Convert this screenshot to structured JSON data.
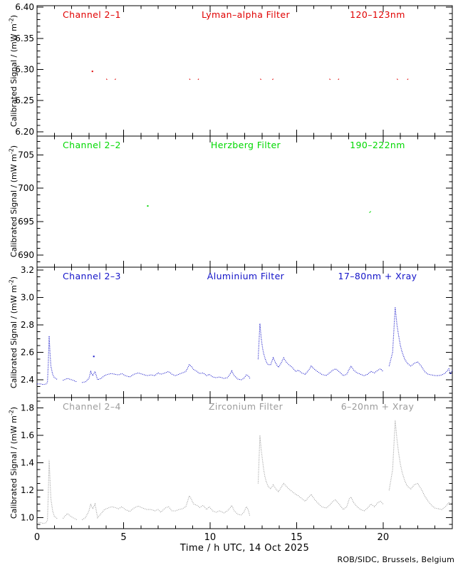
{
  "footer": {
    "credit": "ROB/SIDC, Brussels, Belgium"
  },
  "chart_data": {
    "type": "line",
    "title": "LYRA calibrated signal, four stacked channel panels",
    "x_axis": {
      "label": "Time / h UTC, 14 Oct 2025",
      "range": [
        0,
        24
      ],
      "major_ticks": [
        0,
        5,
        10,
        15,
        20
      ],
      "minor_step": 1
    },
    "y_axis_label": {
      "prefix": "Calibrated Signal / (mW m",
      "sup": "-2",
      "suffix": ")"
    },
    "panels": [
      {
        "channel": "Channel 2–1",
        "filter": "Lyman–alpha Filter",
        "range": "120–123nm",
        "color": "#e00000",
        "style": "solid",
        "ylim": [
          6.193,
          6.4025
        ],
        "yticks": [
          6.2,
          6.25,
          6.3,
          6.35,
          6.4
        ],
        "ytick_decimals": 2,
        "minor_step": 0.01,
        "t": [
          0,
          3.0,
          3.6,
          4.0,
          4.05,
          4.5,
          4.55,
          8.8,
          8.85,
          9.3,
          9.35,
          12.9,
          12.95,
          13.6,
          13.65,
          16.9,
          16.95,
          17.4,
          17.45,
          20.8,
          20.85,
          21.4,
          21.45,
          24
        ],
        "v": [
          6.285,
          6.285,
          6.285,
          6.285,
          6.2835,
          6.2835,
          6.285,
          6.285,
          6.2835,
          6.2835,
          6.285,
          6.285,
          6.2835,
          6.2835,
          6.285,
          6.285,
          6.2835,
          6.2835,
          6.285,
          6.285,
          6.2835,
          6.2835,
          6.285,
          6.285
        ],
        "outliers": [
          [
            3.2,
            6.297
          ]
        ]
      },
      {
        "channel": "Channel 2–2",
        "filter": "Herzberg Filter",
        "range": "190–222nm",
        "color": "#00d800",
        "style": "solid",
        "ylim": [
          688.2,
          707.8
        ],
        "yticks": [
          690,
          695,
          700,
          705
        ],
        "ytick_decimals": 0,
        "minor_step": 1,
        "t": [
          0,
          6.0,
          12.0,
          19.2,
          19.3,
          24
        ],
        "v": [
          696.35,
          696.35,
          696.35,
          696.35,
          696.55,
          696.55
        ],
        "outliers": [
          [
            6.4,
            697.35
          ]
        ]
      },
      {
        "channel": "Channel 2–3",
        "filter": "Aluminium Filter",
        "range": "17–80nm + Xray",
        "color": "#1212c8",
        "style": "dotted",
        "ylim": [
          2.27,
          3.221
        ],
        "yticks": [
          2.4,
          2.6,
          2.8,
          3.0,
          3.2
        ],
        "ytick_decimals": 1,
        "minor_step": 0.05,
        "t": [
          0,
          0.2,
          0.35,
          0.5,
          0.6,
          0.65,
          0.7,
          0.75,
          0.8,
          0.9,
          1.0,
          1.2,
          1.5,
          1.75,
          2.0,
          2.3,
          2.6,
          2.8,
          3.0,
          3.1,
          3.22,
          3.35,
          3.5,
          3.7,
          3.9,
          4.1,
          4.3,
          4.5,
          4.7,
          4.9,
          5.1,
          5.35,
          5.6,
          5.85,
          6.1,
          6.35,
          6.6,
          6.8,
          7.0,
          7.15,
          7.4,
          7.6,
          7.8,
          8.0,
          8.2,
          8.4,
          8.6,
          8.8,
          8.9,
          9.05,
          9.25,
          9.4,
          9.6,
          9.8,
          9.95,
          10.15,
          10.35,
          10.55,
          10.8,
          11.0,
          11.15,
          11.25,
          11.4,
          11.6,
          11.8,
          11.95,
          12.1,
          12.2,
          12.3,
          12.78,
          12.88,
          12.95,
          13.0,
          13.05,
          13.1,
          13.17,
          13.25,
          13.35,
          13.5,
          13.65,
          13.8,
          13.95,
          14.1,
          14.25,
          14.4,
          14.55,
          14.75,
          14.95,
          15.1,
          15.3,
          15.5,
          15.7,
          15.85,
          16.0,
          16.2,
          16.45,
          16.7,
          16.9,
          17.1,
          17.25,
          17.45,
          17.7,
          17.9,
          18.05,
          18.15,
          18.3,
          18.5,
          18.7,
          18.9,
          19.1,
          19.3,
          19.5,
          19.7,
          19.85,
          20.0,
          20.35,
          20.55,
          20.7,
          20.8,
          20.9,
          21.0,
          21.1,
          21.25,
          21.4,
          21.6,
          21.8,
          22.0,
          22.2,
          22.4,
          22.6,
          22.8,
          23.0,
          23.2,
          23.4,
          23.6,
          23.8,
          23.9,
          24.0
        ],
        "v": [
          2.37,
          2.37,
          2.365,
          2.368,
          2.38,
          2.52,
          2.72,
          2.6,
          2.5,
          2.44,
          2.415,
          2.4,
          2.395,
          2.41,
          2.4,
          2.385,
          2.38,
          2.385,
          2.41,
          2.46,
          2.43,
          2.46,
          2.4,
          2.41,
          2.43,
          2.44,
          2.445,
          2.44,
          2.435,
          2.445,
          2.43,
          2.42,
          2.44,
          2.45,
          2.44,
          2.43,
          2.435,
          2.43,
          2.45,
          2.44,
          2.45,
          2.46,
          2.44,
          2.43,
          2.44,
          2.45,
          2.46,
          2.51,
          2.5,
          2.475,
          2.46,
          2.445,
          2.45,
          2.43,
          2.44,
          2.42,
          2.415,
          2.42,
          2.41,
          2.415,
          2.44,
          2.465,
          2.43,
          2.405,
          2.4,
          2.41,
          2.435,
          2.43,
          2.41,
          2.55,
          2.81,
          2.71,
          2.66,
          2.62,
          2.59,
          2.56,
          2.53,
          2.51,
          2.51,
          2.56,
          2.52,
          2.49,
          2.52,
          2.56,
          2.53,
          2.51,
          2.49,
          2.46,
          2.47,
          2.45,
          2.44,
          2.47,
          2.5,
          2.48,
          2.46,
          2.44,
          2.43,
          2.45,
          2.47,
          2.48,
          2.46,
          2.43,
          2.44,
          2.48,
          2.5,
          2.47,
          2.45,
          2.44,
          2.43,
          2.44,
          2.46,
          2.45,
          2.47,
          2.48,
          2.46,
          2.5,
          2.6,
          2.93,
          2.8,
          2.72,
          2.65,
          2.6,
          2.55,
          2.52,
          2.5,
          2.52,
          2.53,
          2.5,
          2.46,
          2.44,
          2.435,
          2.43,
          2.43,
          2.435,
          2.45,
          2.48,
          2.44,
          2.47
        ],
        "outliers": [
          [
            3.28,
            2.57
          ]
        ]
      },
      {
        "channel": "Channel 2–4",
        "filter": "Zirconium Filter",
        "range": "6–20nm + Xray",
        "color": "#9c9c9c",
        "style": "dotted",
        "ylim": [
          0.92,
          1.876
        ],
        "yticks": [
          1.0,
          1.2,
          1.4,
          1.6,
          1.8
        ],
        "ytick_decimals": 1,
        "minor_step": 0.05,
        "t": [
          0,
          0.2,
          0.35,
          0.5,
          0.6,
          0.65,
          0.7,
          0.75,
          0.8,
          0.9,
          1.0,
          1.2,
          1.5,
          1.75,
          2.0,
          2.3,
          2.6,
          2.8,
          3.0,
          3.1,
          3.22,
          3.35,
          3.5,
          3.7,
          3.9,
          4.1,
          4.3,
          4.5,
          4.7,
          4.9,
          5.1,
          5.35,
          5.6,
          5.85,
          6.1,
          6.35,
          6.6,
          6.8,
          7.0,
          7.15,
          7.4,
          7.6,
          7.8,
          8.0,
          8.2,
          8.4,
          8.6,
          8.8,
          8.9,
          9.05,
          9.25,
          9.4,
          9.6,
          9.8,
          9.95,
          10.15,
          10.35,
          10.55,
          10.8,
          11.0,
          11.15,
          11.25,
          11.4,
          11.6,
          11.8,
          11.95,
          12.1,
          12.2,
          12.3,
          12.78,
          12.88,
          12.95,
          13.0,
          13.05,
          13.1,
          13.17,
          13.25,
          13.35,
          13.5,
          13.65,
          13.8,
          13.95,
          14.1,
          14.25,
          14.4,
          14.55,
          14.75,
          14.95,
          15.1,
          15.3,
          15.5,
          15.7,
          15.85,
          16.0,
          16.2,
          16.45,
          16.7,
          16.9,
          17.1,
          17.25,
          17.45,
          17.7,
          17.9,
          18.05,
          18.15,
          18.3,
          18.5,
          18.7,
          18.9,
          19.1,
          19.3,
          19.5,
          19.7,
          19.85,
          20.0,
          20.35,
          20.55,
          20.7,
          20.8,
          20.9,
          21.0,
          21.1,
          21.25,
          21.4,
          21.6,
          21.8,
          22.0,
          22.2,
          22.4,
          22.6,
          22.8,
          23.0,
          23.2,
          23.4,
          23.6,
          23.8,
          23.9,
          24.0
        ],
        "v": [
          0.965,
          0.965,
          0.958,
          0.962,
          0.98,
          1.18,
          1.42,
          1.28,
          1.14,
          1.05,
          1.01,
          0.99,
          0.995,
          1.03,
          1.005,
          0.985,
          0.985,
          1.0,
          1.05,
          1.1,
          1.065,
          1.1,
          1.0,
          1.03,
          1.06,
          1.07,
          1.08,
          1.075,
          1.065,
          1.08,
          1.06,
          1.045,
          1.07,
          1.085,
          1.07,
          1.06,
          1.06,
          1.05,
          1.06,
          1.04,
          1.07,
          1.08,
          1.05,
          1.05,
          1.06,
          1.065,
          1.08,
          1.16,
          1.14,
          1.1,
          1.09,
          1.075,
          1.09,
          1.06,
          1.08,
          1.05,
          1.04,
          1.05,
          1.035,
          1.05,
          1.07,
          1.09,
          1.05,
          1.025,
          1.02,
          1.04,
          1.08,
          1.06,
          1.01,
          1.25,
          1.6,
          1.5,
          1.45,
          1.4,
          1.35,
          1.3,
          1.26,
          1.23,
          1.21,
          1.24,
          1.21,
          1.19,
          1.22,
          1.25,
          1.23,
          1.21,
          1.19,
          1.17,
          1.16,
          1.14,
          1.12,
          1.15,
          1.17,
          1.14,
          1.11,
          1.08,
          1.07,
          1.09,
          1.12,
          1.13,
          1.1,
          1.06,
          1.08,
          1.14,
          1.15,
          1.11,
          1.08,
          1.06,
          1.05,
          1.07,
          1.1,
          1.08,
          1.11,
          1.12,
          1.1,
          1.2,
          1.35,
          1.71,
          1.57,
          1.47,
          1.39,
          1.33,
          1.27,
          1.23,
          1.21,
          1.24,
          1.25,
          1.21,
          1.16,
          1.12,
          1.09,
          1.07,
          1.065,
          1.06,
          1.08,
          1.11,
          1.1,
          1.11
        ],
        "outliers": []
      }
    ]
  }
}
